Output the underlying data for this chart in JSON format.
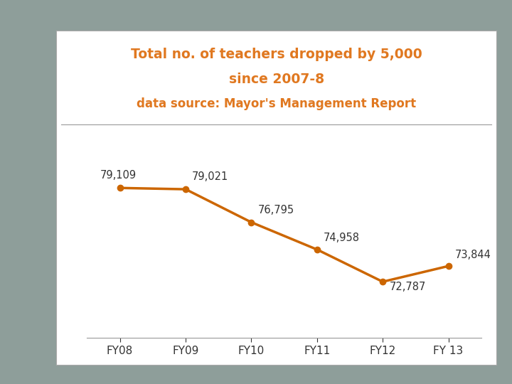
{
  "title_line1": "Total no. of teachers dropped by 5,000",
  "title_line2": "since 2007-8",
  "subtitle": "data source: Mayor's Management Report",
  "title_color": "#E07820",
  "x_labels": [
    "FY08",
    "FY09",
    "FY10",
    "FY11",
    "FY12",
    "FY 13"
  ],
  "y_values": [
    79109,
    79021,
    76795,
    74958,
    72787,
    73844
  ],
  "line_color": "#CC6600",
  "line_width": 2.5,
  "marker_size": 6,
  "annotations": [
    "79,109",
    "79,021",
    "76,795",
    "74,958",
    "72,787",
    "73,844"
  ],
  "ann_xoff": [
    -0.3,
    0.1,
    0.1,
    0.1,
    0.1,
    0.1
  ],
  "ann_yoff": [
    500,
    500,
    450,
    450,
    -700,
    400
  ],
  "panel_bg": "#ffffff",
  "outer_bg": "#8e9e9a",
  "grid_color": "#999999",
  "border_color": "#aaaaaa",
  "ylim_min": 69000,
  "ylim_max": 82500,
  "annotation_fontsize": 10.5,
  "title_fontsize": 13.5,
  "subtitle_fontsize": 12,
  "xtick_fontsize": 11,
  "xtick_color": "#333333"
}
